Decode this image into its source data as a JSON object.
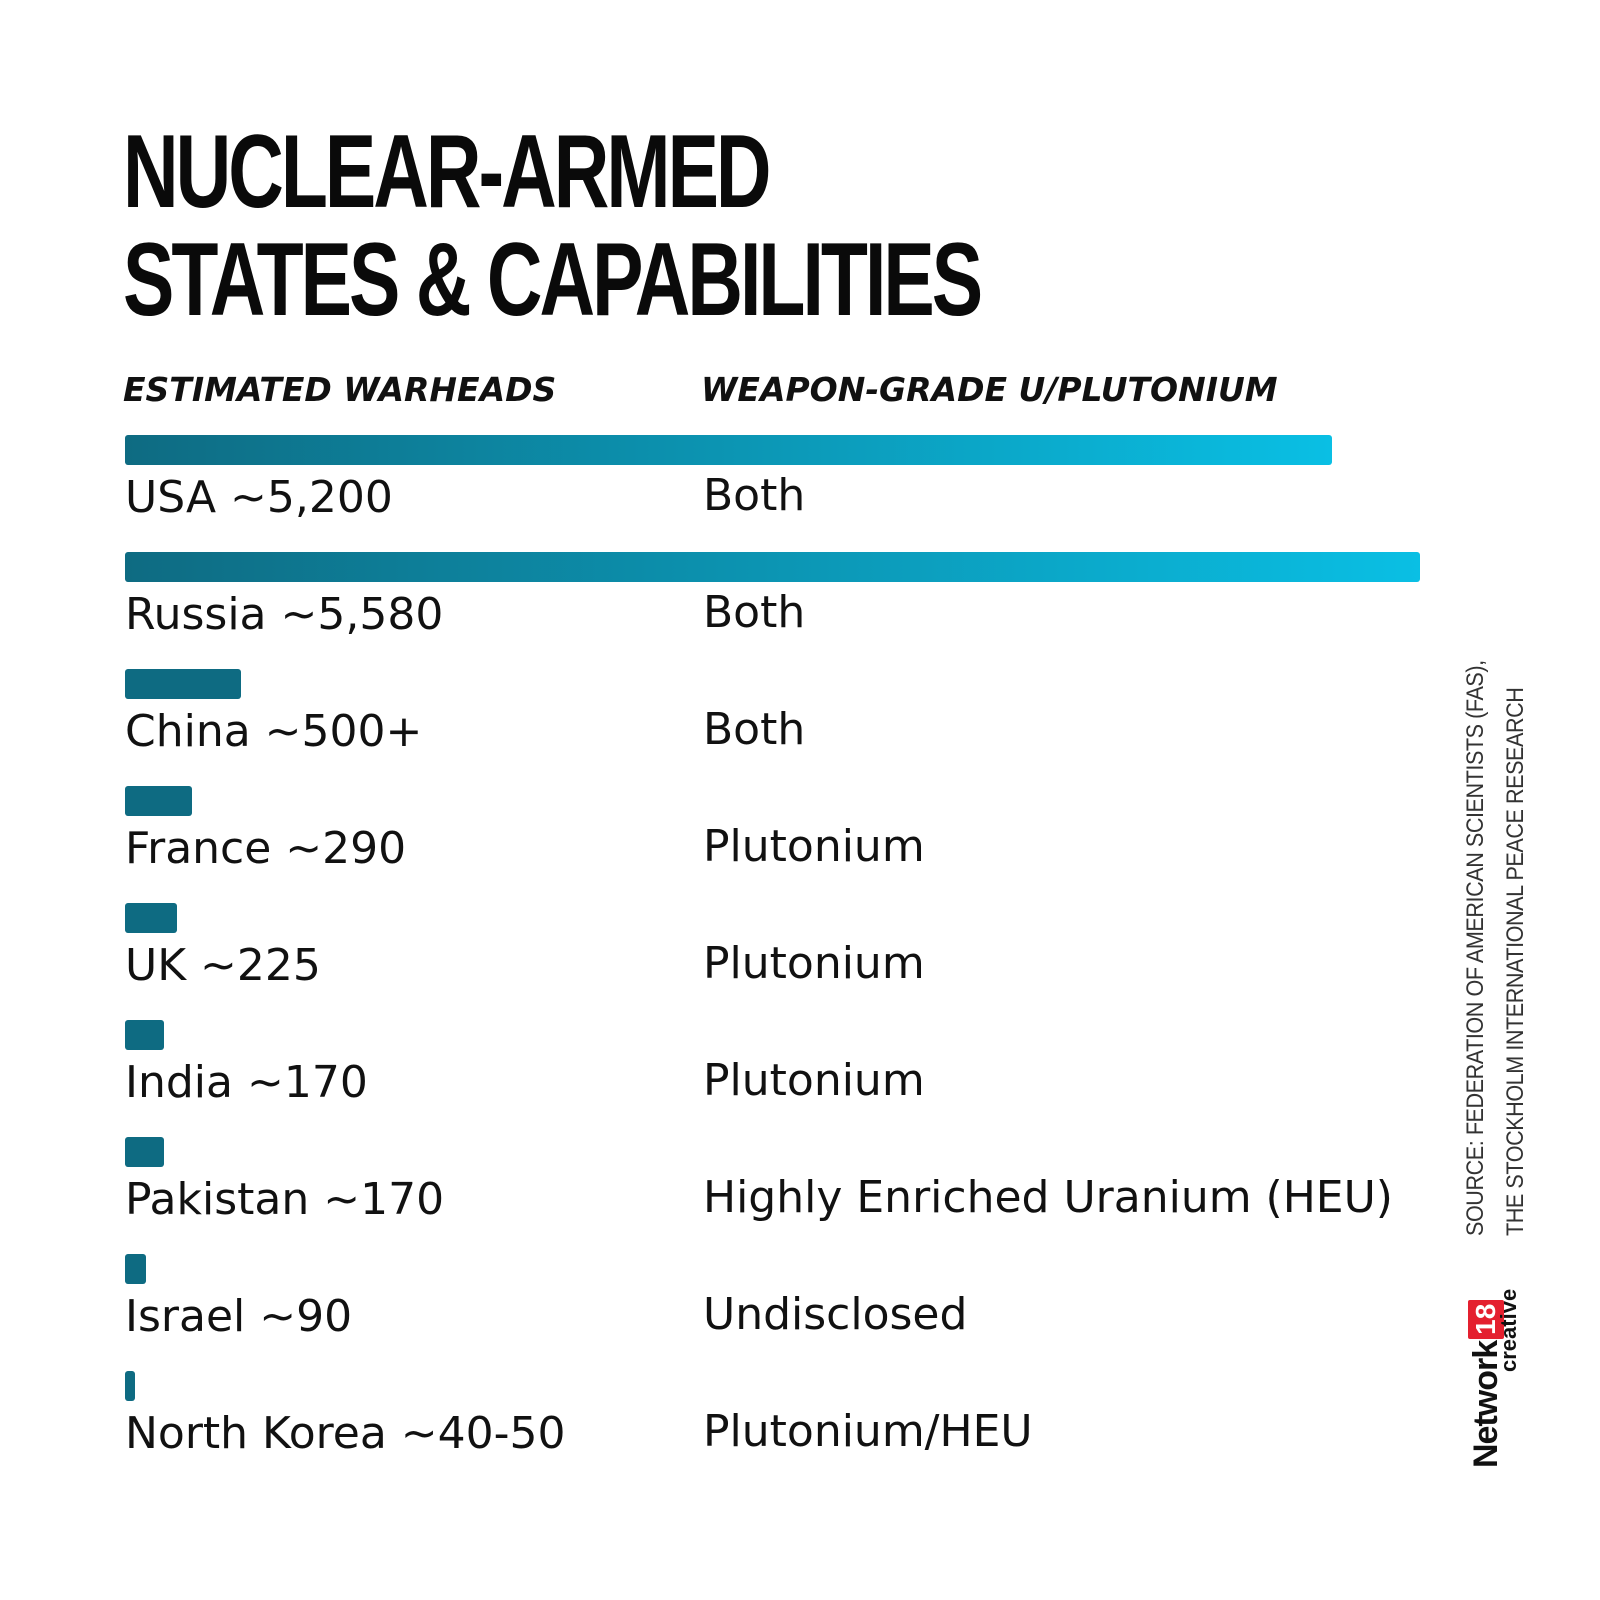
{
  "title_lines": [
    "NUCLEAR-ARMED",
    "STATES & CAPABILITIES"
  ],
  "headers": {
    "left": "ESTIMATED WARHEADS",
    "right": "WEAPON-GRADE U/PLUTONIUM"
  },
  "source_lines": [
    "SOURCE: FEDERATION OF AMERICAN SCIENTISTS (FAS),",
    "THE STOCKHOLM INTERNATIONAL PEACE RESEARCH"
  ],
  "logo": {
    "network": "Network",
    "number": "18",
    "creative": "creative"
  },
  "colors": {
    "bar_dark": "#0e6b82",
    "bar_gradient_end": "#0abfe4",
    "logo_red": "#e4202f"
  },
  "chart_data": {
    "type": "bar",
    "orientation": "horizontal",
    "title": "NUCLEAR-ARMED STATES & CAPABILITIES",
    "categories": [
      "USA",
      "Russia",
      "China",
      "France",
      "UK",
      "India",
      "Pakistan",
      "Israel",
      "North Korea"
    ],
    "values": [
      5200,
      5580,
      500,
      290,
      225,
      170,
      170,
      90,
      45
    ],
    "labels": [
      "USA ~5,200",
      "Russia ~5,580",
      "China ~500+",
      "France ~290",
      "UK ~225",
      "India ~170",
      "Pakistan ~170",
      "Israel ~90",
      "North Korea ~40-50"
    ],
    "materials": [
      "Both",
      "Both",
      "Both",
      "Plutonium",
      "Plutonium",
      "Plutonium",
      "Highly Enriched Uranium (HEU)",
      "Undisclosed",
      "Plutonium/HEU"
    ],
    "xlabel": "ESTIMATED WARHEADS",
    "ylabel": "",
    "xlim": [
      0,
      5580
    ],
    "grid": false
  }
}
